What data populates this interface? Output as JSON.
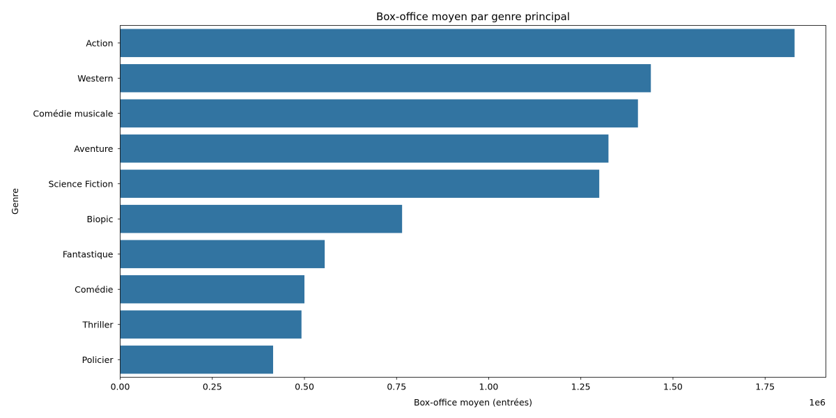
{
  "chart_data": {
    "type": "bar",
    "orientation": "horizontal",
    "title": "Box-office moyen par genre principal",
    "xlabel": "Box-office moyen (entrées)",
    "ylabel": "Genre",
    "x_scale_label": "1e6",
    "categories": [
      "Action",
      "Western",
      "Comédie musicale",
      "Aventure",
      "Science Fiction",
      "Biopic",
      "Fantastique",
      "Comédie",
      "Thriller",
      "Policier"
    ],
    "values": [
      1830000,
      1440000,
      1405000,
      1325000,
      1300000,
      765000,
      555000,
      500000,
      492000,
      415000
    ],
    "xticks": [
      0,
      250000,
      500000,
      750000,
      1000000,
      1250000,
      1500000,
      1750000
    ],
    "xtick_labels": [
      "0.00",
      "0.25",
      "0.50",
      "0.75",
      "1.00",
      "1.25",
      "1.50",
      "1.75"
    ],
    "xlim": [
      0,
      1915000
    ],
    "grid": false,
    "bar_color": "#3274a1"
  }
}
